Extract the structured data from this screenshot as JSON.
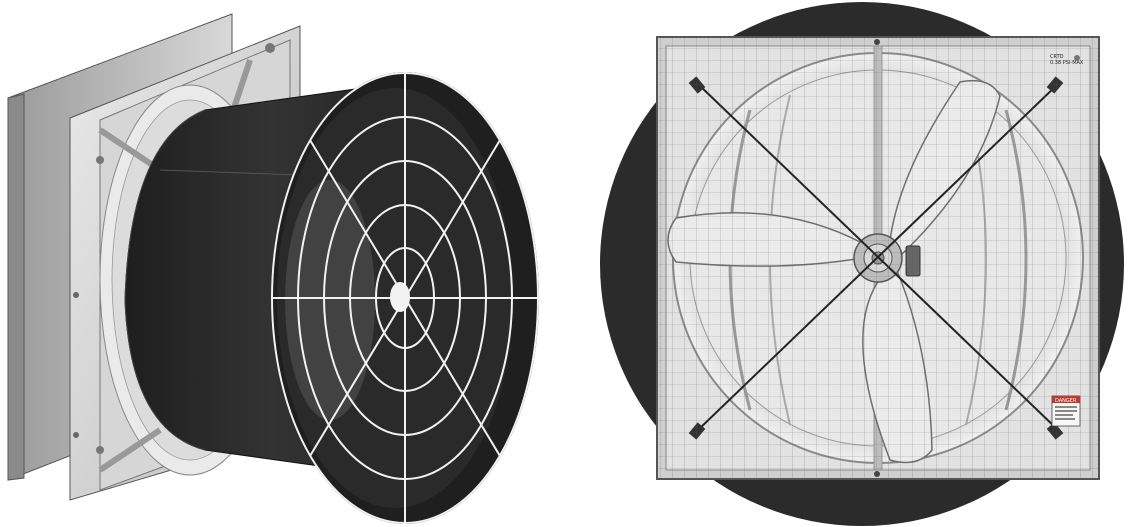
{
  "scene": {
    "subject": "cone-fan",
    "views": [
      "isometric-view",
      "front-view"
    ]
  },
  "front_view": {
    "warning_label": "DANGER",
    "corner_label_line1": "CRTD",
    "corner_label_line2": "0.38 PSI-MAX"
  },
  "colors": {
    "background": "#ffffff",
    "cone": "#2b2b2b",
    "frame": "#c9c9c9",
    "frame_dark": "#8e8e8e",
    "guard_wire": "#f2f2f2",
    "blade": "#e6e6e6",
    "warning_red": "#c0392b"
  }
}
